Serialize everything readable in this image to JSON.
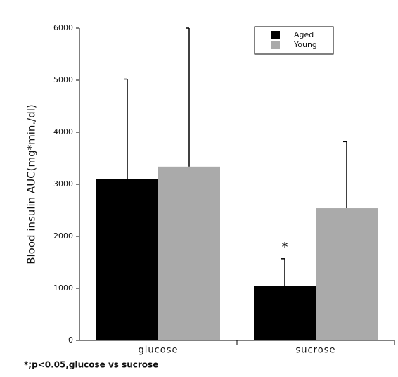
{
  "chart_data": {
    "type": "bar",
    "y_label": "Blood insulin AUC(mg*min./dl)",
    "categories": [
      "glucose",
      "sucrose"
    ],
    "series": [
      {
        "name": "Aged",
        "color": "#000000",
        "values": [
          3100,
          1050
        ],
        "errors": [
          1920,
          520
        ]
      },
      {
        "name": "Young",
        "color": "#aaaaaa",
        "values": [
          3340,
          2540
        ],
        "errors": [
          2660,
          1280
        ]
      }
    ],
    "annotation": "*",
    "footnote": "*;p<0.05,glucose vs sucrose",
    "ylim": [
      0,
      6000
    ],
    "yticks": [
      0,
      1000,
      2000,
      3000,
      4000,
      5000,
      6000
    ],
    "legend": "top-right"
  }
}
